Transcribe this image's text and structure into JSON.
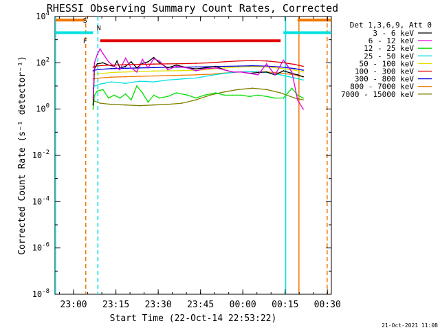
{
  "chart_data": {
    "type": "line",
    "title": "RHESSI Observing Summary Count Rates, Corrected",
    "xlabel": "Start Time (22-Oct-14 22:53:22)",
    "ylabel": "Corrected Count Rate (s⁻¹ detector⁻¹)",
    "x_unit": "minutes after 22:53:22",
    "xlim": [
      0,
      98
    ],
    "ylog": true,
    "ylim": [
      1e-08,
      10000.0
    ],
    "xticks": [
      {
        "x": 6.6,
        "label": "23:00"
      },
      {
        "x": 21.6,
        "label": "23:15"
      },
      {
        "x": 36.6,
        "label": "23:30"
      },
      {
        "x": 51.6,
        "label": "23:45"
      },
      {
        "x": 66.6,
        "label": "00:00"
      },
      {
        "x": 81.6,
        "label": "00:15"
      },
      {
        "x": 96.6,
        "label": "00:30"
      }
    ],
    "yticks": [
      {
        "v": 10000.0,
        "base": "10",
        "exp": "4"
      },
      {
        "v": 100.0,
        "base": "10",
        "exp": "2"
      },
      {
        "v": 1.0,
        "base": "10",
        "exp": "0"
      },
      {
        "v": 0.01,
        "base": "10",
        "exp": "-2"
      },
      {
        "v": 0.0001,
        "base": "10",
        "exp": "-4"
      },
      {
        "v": 1e-06,
        "base": "10",
        "exp": "-6"
      },
      {
        "v": 1e-08,
        "base": "10",
        "exp": "-8"
      }
    ],
    "legend_header": "Det 1,3,6,9, Att 0",
    "legend_position": "right",
    "series": [
      {
        "name": "3 - 6 keV",
        "color": "#000000",
        "x": [
          13.5,
          14,
          15,
          17,
          19,
          21,
          22,
          23,
          25,
          27,
          29,
          31,
          33,
          35,
          37,
          40,
          43,
          47,
          50,
          53,
          57,
          60,
          63,
          66,
          69,
          72,
          75,
          78,
          81,
          84,
          86,
          88
        ],
        "y": [
          1.5,
          55,
          90,
          100,
          80,
          70,
          120,
          60,
          70,
          110,
          60,
          95,
          110,
          170,
          100,
          60,
          80,
          60,
          55,
          60,
          70,
          50,
          40,
          40,
          35,
          38,
          40,
          30,
          45,
          35,
          30,
          25
        ]
      },
      {
        "name": "6 - 12 keV",
        "color": "#e000e0",
        "x": [
          13.5,
          14,
          15,
          16,
          17,
          19,
          21,
          23,
          25,
          27,
          29,
          31,
          33,
          35,
          37,
          40,
          43,
          47,
          50,
          53,
          57,
          60,
          63,
          66,
          69,
          72,
          75,
          78,
          81,
          84,
          86,
          88
        ],
        "y": [
          3,
          100,
          230,
          400,
          250,
          110,
          70,
          50,
          160,
          60,
          40,
          140,
          60,
          150,
          120,
          50,
          70,
          60,
          45,
          55,
          60,
          50,
          40,
          40,
          35,
          30,
          90,
          30,
          130,
          40,
          2.5,
          1
        ]
      },
      {
        "name": "12 - 25 keV",
        "color": "#00e000",
        "x": [
          13.5,
          14,
          15,
          17,
          19,
          21,
          23,
          25,
          27,
          29,
          31,
          33,
          35,
          37,
          40,
          43,
          47,
          50,
          53,
          57,
          60,
          63,
          66,
          69,
          72,
          75,
          78,
          81,
          84,
          86,
          88
        ],
        "y": [
          1,
          4,
          6,
          7,
          3,
          4,
          3,
          4.5,
          2.5,
          10,
          5,
          2,
          4,
          3,
          3.5,
          5,
          4,
          3,
          4,
          5,
          4,
          4,
          4,
          3.5,
          4,
          3.5,
          3,
          3,
          8,
          4,
          3
        ]
      },
      {
        "name": "25 - 50 keV",
        "color": "#00e0e0",
        "x": [
          13.5,
          14,
          16,
          20,
          25,
          30,
          35,
          40,
          45,
          50,
          55,
          60,
          65,
          70,
          75,
          80,
          85,
          88
        ],
        "y": [
          8,
          10,
          12,
          15,
          13,
          16,
          15,
          18,
          20,
          22,
          28,
          35,
          40,
          42,
          38,
          30,
          22,
          18
        ]
      },
      {
        "name": "50 - 100 keV",
        "color": "#e0e000",
        "x": [
          13.5,
          14,
          16,
          20,
          25,
          30,
          35,
          40,
          45,
          50,
          55,
          60,
          65,
          70,
          75,
          80,
          85,
          88
        ],
        "y": [
          30,
          32,
          34,
          38,
          40,
          42,
          44,
          45,
          46,
          47,
          52,
          60,
          65,
          68,
          66,
          58,
          48,
          40
        ]
      },
      {
        "name": "100 - 300 keV",
        "color": "#e00000",
        "x": [
          13.5,
          14,
          16,
          20,
          25,
          30,
          35,
          40,
          45,
          50,
          55,
          60,
          65,
          70,
          75,
          80,
          85,
          88
        ],
        "y": [
          65,
          70,
          75,
          80,
          82,
          85,
          88,
          90,
          92,
          95,
          100,
          110,
          120,
          125,
          120,
          105,
          85,
          70
        ]
      },
      {
        "name": "300 - 800 keV",
        "color": "#0000e0",
        "x": [
          13.5,
          14,
          16,
          20,
          25,
          30,
          35,
          40,
          45,
          50,
          55,
          60,
          65,
          70,
          75,
          80,
          85,
          88
        ],
        "y": [
          45,
          48,
          52,
          56,
          58,
          60,
          62,
          64,
          65,
          66,
          68,
          70,
          72,
          74,
          72,
          66,
          56,
          48
        ]
      },
      {
        "name": "800 - 7000 keV",
        "color": "#f07800",
        "x": [
          13.5,
          14,
          16,
          20,
          25,
          30,
          35,
          40,
          45,
          50,
          55,
          60,
          65,
          70,
          75,
          80,
          85,
          88
        ],
        "y": [
          20,
          21,
          22,
          24,
          25,
          26,
          27,
          28,
          29,
          30,
          32,
          36,
          40,
          42,
          40,
          36,
          30,
          25
        ]
      },
      {
        "name": "7000 - 15000 keV",
        "color": "#808000",
        "x": [
          13.5,
          14,
          16,
          20,
          25,
          30,
          35,
          40,
          45,
          50,
          55,
          60,
          65,
          70,
          75,
          80,
          85,
          88
        ],
        "y": [
          2.5,
          2.2,
          1.8,
          1.6,
          1.5,
          1.4,
          1.5,
          1.6,
          1.8,
          2.5,
          4,
          5.5,
          7,
          8,
          7,
          5,
          3,
          2.5
        ]
      }
    ],
    "flag_markers": [
      {
        "label": "S",
        "color": "#f07800"
      },
      {
        "label": "F",
        "color": "#e00000"
      },
      {
        "label": "N",
        "color": "#00e0e0"
      }
    ],
    "flag_lines": [
      {
        "x0": 0.2,
        "x1": 10.5,
        "y": 7000,
        "color": "#f07800"
      },
      {
        "x0": 86,
        "x1": 98,
        "y": 7000,
        "color": "#f07800"
      },
      {
        "x0": 0.2,
        "x1": 13.5,
        "y": 2000,
        "color": "#00e0e0"
      },
      {
        "x0": 81,
        "x1": 98,
        "y": 2000,
        "color": "#00e0e0"
      },
      {
        "x0": 16,
        "x1": 80,
        "y": 900,
        "color": "#e00000"
      }
    ],
    "vertical_lines": [
      {
        "x": 0.2,
        "color": "#00e0e0",
        "dash": false
      },
      {
        "x": 10.9,
        "color": "#f07800",
        "dash": true
      },
      {
        "x": 15.2,
        "color": "#00e0e0",
        "dash": true
      },
      {
        "x": 81.8,
        "color": "#00e0e0",
        "dash": false
      },
      {
        "x": 86.5,
        "color": "#f07800",
        "dash": false
      },
      {
        "x": 96.5,
        "color": "#f07800",
        "dash": true
      }
    ],
    "timestamp": "21-Oct-2021 11:08"
  }
}
